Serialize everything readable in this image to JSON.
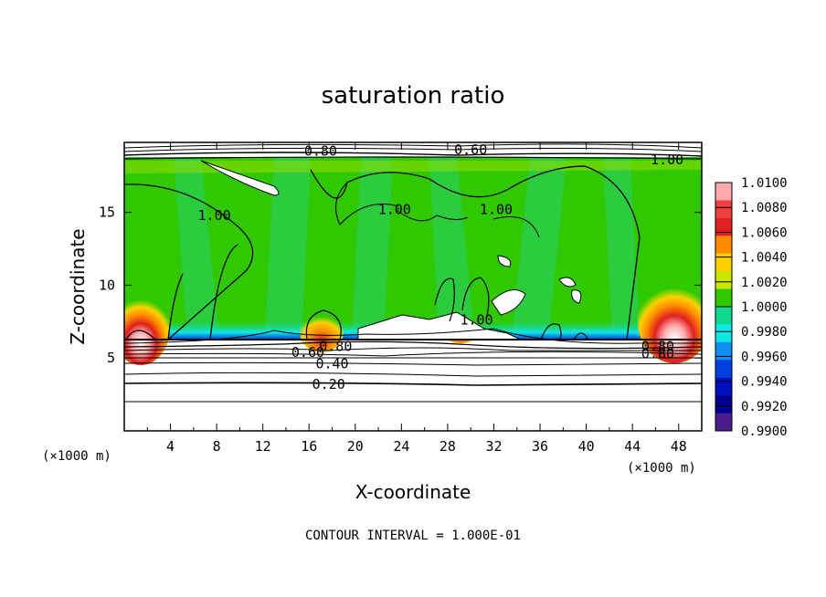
{
  "chart_data": {
    "type": "heatmap",
    "title": "saturation ratio",
    "xlabel": "X-coordinate",
    "ylabel": "Z-coordinate",
    "x_unit": "(×1000 m)",
    "y_unit": "(×1000 m)",
    "xlim": [
      0,
      50
    ],
    "ylim": [
      0,
      19.8
    ],
    "x_ticks": [
      "4",
      "8",
      "12",
      "16",
      "20",
      "24",
      "28",
      "32",
      "36",
      "40",
      "44",
      "48"
    ],
    "y_ticks": [
      "5",
      "10",
      "15"
    ],
    "colorbar": {
      "labels": [
        "1.0100",
        "1.0080",
        "1.0060",
        "1.0040",
        "1.0020",
        "1.0000",
        "0.9980",
        "0.9960",
        "0.9940",
        "0.9920",
        "0.9900"
      ],
      "colors": [
        "#ffaaaa",
        "#f04040",
        "#e02020",
        "#ff8c00",
        "#ffd000",
        "#c8e600",
        "#30c800",
        "#10d890",
        "#10e8e8",
        "#1090f0",
        "#0040e0",
        "#0010c0",
        "#000090",
        "#4a1c8c"
      ]
    },
    "contour_labels": [
      {
        "text": "0.80",
        "x": 17,
        "z": 19.2
      },
      {
        "text": "0.60",
        "x": 30,
        "z": 19.3
      },
      {
        "text": "1.00",
        "x": 47,
        "z": 18.6
      },
      {
        "text": "1.00",
        "x": 7.8,
        "z": 14.8
      },
      {
        "text": "1.00",
        "x": 23.4,
        "z": 15.2
      },
      {
        "text": "1.00",
        "x": 32.2,
        "z": 15.2
      },
      {
        "text": "1.00",
        "x": 30.5,
        "z": 7.6
      },
      {
        "text": "0.80",
        "x": 18.3,
        "z": 5.8
      },
      {
        "text": "0.60",
        "x": 15.9,
        "z": 5.4
      },
      {
        "text": "0.40",
        "x": 18.0,
        "z": 4.6
      },
      {
        "text": "0.20",
        "x": 17.7,
        "z": 3.2
      },
      {
        "text": "0.80",
        "x": 46.2,
        "z": 5.8
      },
      {
        "text": "0.80",
        "x": 46.2,
        "z": 5.3
      }
    ],
    "contour_interval_text": "CONTOUR INTERVAL = 1.000E-01"
  }
}
